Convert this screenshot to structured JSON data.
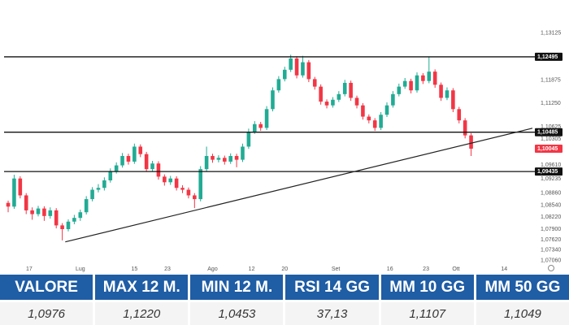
{
  "chart_data": {
    "type": "candlestick",
    "up_color": "#22ab94",
    "down_color": "#f23645",
    "open": [
      1.086,
      1.085,
      1.0925,
      1.088,
      1.084,
      1.083,
      1.0845,
      1.0825,
      1.084,
      1.08,
      1.079,
      1.081,
      1.082,
      1.0835,
      1.087,
      1.0895,
      1.09,
      1.092,
      1.0945,
      1.096,
      1.0985,
      1.097,
      1.101,
      1.099,
      1.095,
      1.0965,
      1.093,
      1.0915,
      1.0925,
      1.09,
      1.0895,
      1.088,
      1.087,
      1.095,
      1.0985,
      1.0975,
      1.098,
      1.097,
      1.0985,
      1.0975,
      1.101,
      1.105,
      1.107,
      1.106,
      1.111,
      1.116,
      1.119,
      1.1215,
      1.1245,
      1.12,
      1.1235,
      1.119,
      1.117,
      1.113,
      1.112,
      1.1135,
      1.115,
      1.118,
      1.114,
      1.112,
      1.109,
      1.108,
      1.106,
      1.1095,
      1.112,
      1.115,
      1.117,
      1.1185,
      1.116,
      1.12,
      1.1185,
      1.121,
      1.1175,
      1.114,
      1.116,
      1.111,
      1.108,
      1.104
    ],
    "high": [
      1.0866,
      1.0935,
      1.0931,
      1.0886,
      1.0848,
      1.0852,
      1.0851,
      1.0848,
      1.0846,
      1.0806,
      1.0816,
      1.0828,
      1.0842,
      1.0878,
      1.0902,
      1.091,
      1.0928,
      1.0952,
      1.0968,
      1.0993,
      1.0991,
      1.1018,
      1.1016,
      1.0996,
      1.0972,
      1.0971,
      1.0936,
      1.0932,
      1.0931,
      1.0907,
      1.0901,
      1.0886,
      1.0958,
      1.101,
      1.0991,
      1.0987,
      1.0986,
      1.0992,
      1.0991,
      1.1018,
      1.1058,
      1.1078,
      1.1076,
      1.1118,
      1.1168,
      1.1198,
      1.1223,
      1.1255,
      1.1251,
      1.1252,
      1.1241,
      1.1196,
      1.1176,
      1.1136,
      1.1142,
      1.1158,
      1.1188,
      1.1186,
      1.1146,
      1.1126,
      1.1096,
      1.1086,
      1.1102,
      1.1128,
      1.1158,
      1.1178,
      1.1193,
      1.1191,
      1.1208,
      1.1206,
      1.125,
      1.1216,
      1.1181,
      1.1168,
      1.1166,
      1.1116,
      1.1086,
      1.1046
    ],
    "low": [
      1.0835,
      1.0844,
      1.0872,
      1.083,
      1.0815,
      1.0824,
      1.0812,
      1.0818,
      1.0792,
      1.076,
      1.0784,
      1.0803,
      1.0812,
      1.0829,
      1.0864,
      1.0888,
      1.0893,
      1.0914,
      1.0938,
      1.0954,
      1.0962,
      1.0964,
      1.0982,
      1.0943,
      1.0944,
      1.0922,
      1.0906,
      1.0908,
      1.0893,
      1.0886,
      1.0872,
      1.0846,
      1.0864,
      1.0944,
      1.0967,
      1.0968,
      1.0962,
      1.0964,
      1.0955,
      1.0969,
      1.1004,
      1.1044,
      1.1052,
      1.1054,
      1.1104,
      1.1154,
      1.1184,
      1.1209,
      1.1192,
      1.1194,
      1.1182,
      1.1162,
      1.1122,
      1.1112,
      1.1114,
      1.1129,
      1.1144,
      1.1132,
      1.1112,
      1.1082,
      1.1072,
      1.1052,
      1.1054,
      1.1089,
      1.1114,
      1.1144,
      1.1164,
      1.1152,
      1.1154,
      1.1177,
      1.1179,
      1.1167,
      1.1132,
      1.1134,
      1.1102,
      1.1072,
      1.1032,
      1.0985
    ],
    "close": [
      1.085,
      1.0925,
      1.088,
      1.084,
      1.083,
      1.0845,
      1.0825,
      1.084,
      1.08,
      1.079,
      1.081,
      1.082,
      1.0835,
      1.087,
      1.0895,
      1.09,
      1.092,
      1.0945,
      1.096,
      1.0985,
      1.097,
      1.101,
      1.099,
      1.095,
      1.0965,
      1.093,
      1.0915,
      1.0925,
      1.09,
      1.0895,
      1.088,
      1.087,
      1.095,
      1.0985,
      1.0975,
      1.098,
      1.097,
      1.0985,
      1.0975,
      1.101,
      1.105,
      1.107,
      1.106,
      1.111,
      1.116,
      1.119,
      1.1215,
      1.1245,
      1.12,
      1.1235,
      1.119,
      1.117,
      1.113,
      1.112,
      1.1135,
      1.115,
      1.118,
      1.114,
      1.112,
      1.109,
      1.108,
      1.106,
      1.1095,
      1.112,
      1.115,
      1.117,
      1.1185,
      1.116,
      1.12,
      1.1185,
      1.121,
      1.1175,
      1.114,
      1.116,
      1.111,
      1.108,
      1.104,
      1.10045
    ],
    "xlim": [
      -0.68,
      87.2
    ],
    "ylim": [
      1.0686,
      1.1336
    ],
    "xticks": [
      {
        "value": 3.5,
        "label": "17"
      },
      {
        "value": 12,
        "label": "Lug"
      },
      {
        "value": 21,
        "label": "15"
      },
      {
        "value": 26.5,
        "label": "23"
      },
      {
        "value": 34,
        "label": "Ago"
      },
      {
        "value": 40.5,
        "label": "12"
      },
      {
        "value": 46,
        "label": "20"
      },
      {
        "value": 54.5,
        "label": "Set"
      },
      {
        "value": 63.5,
        "label": "16"
      },
      {
        "value": 69.5,
        "label": "23"
      },
      {
        "value": 74.5,
        "label": "Ott"
      },
      {
        "value": 82.5,
        "label": "14"
      }
    ],
    "yticks": [
      {
        "value": 1.13125,
        "label": "1,13125"
      },
      {
        "value": 1.11875,
        "label": "1,11875"
      },
      {
        "value": 1.1125,
        "label": "1,11250"
      },
      {
        "value": 1.10625,
        "label": "1,10625"
      },
      {
        "value": 1.10305,
        "label": "1,10305"
      },
      {
        "value": 1.0961,
        "label": "1,09610"
      },
      {
        "value": 1.09235,
        "label": "1,09235"
      },
      {
        "value": 1.0886,
        "label": "1,08860"
      },
      {
        "value": 1.0854,
        "label": "1,08540"
      },
      {
        "value": 1.0822,
        "label": "1,08220"
      },
      {
        "value": 1.079,
        "label": "1,07900"
      },
      {
        "value": 1.0762,
        "label": "1,07620"
      },
      {
        "value": 1.0734,
        "label": "1,07340"
      },
      {
        "value": 1.0706,
        "label": "1,07060"
      }
    ],
    "hlines": [
      {
        "value": 1.12495,
        "label": "1,12495"
      },
      {
        "value": 1.10485,
        "label": "1,10485"
      },
      {
        "value": 1.09435,
        "label": "1,09435"
      }
    ],
    "last_price": {
      "value": 1.10045,
      "label": "1,10045"
    },
    "trendline": {
      "x": [
        9.5,
        87.2
      ],
      "y": [
        1.0756,
        1.1059
      ]
    }
  },
  "table": {
    "headers": [
      "VALORE",
      "MAX 12 M.",
      "MIN 12 M.",
      "RSI 14 GG",
      "MM 10 GG",
      "MM 50 GG"
    ],
    "rows": [
      [
        "1,0976",
        "1,1220",
        "1,0453",
        "37,13",
        "1,1107",
        "1,1049"
      ]
    ]
  }
}
